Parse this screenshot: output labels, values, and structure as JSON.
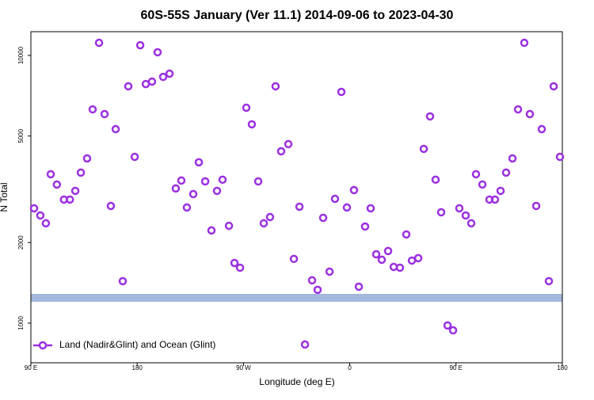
{
  "chart_data": {
    "type": "scatter",
    "title": "60S-55S January (Ver 11.1)   2014-09-06 to 2023-04-30",
    "x_label": "Longitude (deg E)",
    "y_label": "N Total",
    "xlim": [
      90,
      540
    ],
    "xticks": [
      {
        "value": 90,
        "label": "90 E"
      },
      180,
      {
        "value": 270,
        "label": "90 W"
      },
      {
        "value": 360,
        "label": "0"
      },
      {
        "value": 450,
        "label": "90 E"
      },
      {
        "value": 540,
        "label": "180"
      }
    ],
    "ylim": [
      711,
      12270
    ],
    "yscale": "log",
    "yticks": [
      1000,
      2000,
      5000,
      10000
    ],
    "legend_position": "lower left",
    "series": [
      {
        "name": "Land (Nadir&Glint) and Ocean (Glint)",
        "color": "#9b30e0",
        "x": [
          92.7,
          98,
          102.7,
          106.8,
          112,
          118,
          123,
          127.6,
          132.3,
          137.6,
          142.3,
          147.7,
          152.4,
          157.7,
          161.8,
          167.8,
          172.5,
          177.9,
          182.6,
          187.3,
          192.6,
          197.3,
          202,
          207.4,
          212.7,
          217.4,
          222.1,
          227.5,
          232.2,
          237.6,
          242.9,
          247.6,
          252.3,
          257.7,
          262.4,
          267.1,
          272.4,
          277.1,
          282.5,
          287.2,
          292.5,
          297.2,
          301.9,
          308,
          312.7,
          317.4,
          322.1,
          328.1,
          332.8,
          337.5,
          342.9,
          347.5,
          352.9,
          357.6,
          363.6,
          367.7,
          373,
          377.7,
          382.4,
          387.1,
          392.5,
          397.2,
          402.5,
          407.9,
          412.6,
          418,
          422.7,
          428,
          432.7,
          437.4,
          442.8,
          447.5,
          452.8,
          458.2,
          462.9,
          466.9,
          472.3,
          478.3,
          483,
          487.7,
          492.4,
          497.8,
          502.5,
          507.8,
          512.5,
          517.9,
          522.6,
          528.6,
          532.7,
          538
        ],
        "values": [
          2685,
          2525,
          2360,
          3600,
          3295,
          2895,
          2895,
          3120,
          3650,
          4125,
          6290,
          11150,
          6040,
          2740,
          5305,
          1435,
          7670,
          4180,
          10920,
          7820,
          7985,
          10280,
          8320,
          8550,
          3185,
          3410,
          2705,
          3035,
          3990,
          3385,
          2220,
          3120,
          3435,
          2310,
          1678,
          1611,
          6380,
          5530,
          3385,
          2360,
          2490,
          7670,
          4385,
          4665,
          1738,
          2722,
          832,
          1445,
          1332,
          2474,
          1557,
          2913,
          7310,
          2705,
          3140,
          1368,
          2296,
          2685,
          1808,
          1725,
          1860,
          1622,
          1611,
          2145,
          1713,
          1749,
          4477,
          5920,
          3435,
          2595,
          980,
          940,
          2685,
          2525,
          2360,
          3600,
          3295,
          2895,
          2895,
          3120,
          3650,
          4125,
          6290,
          11150,
          6040,
          2740,
          5305,
          1435,
          7670,
          4180
        ]
      }
    ]
  }
}
